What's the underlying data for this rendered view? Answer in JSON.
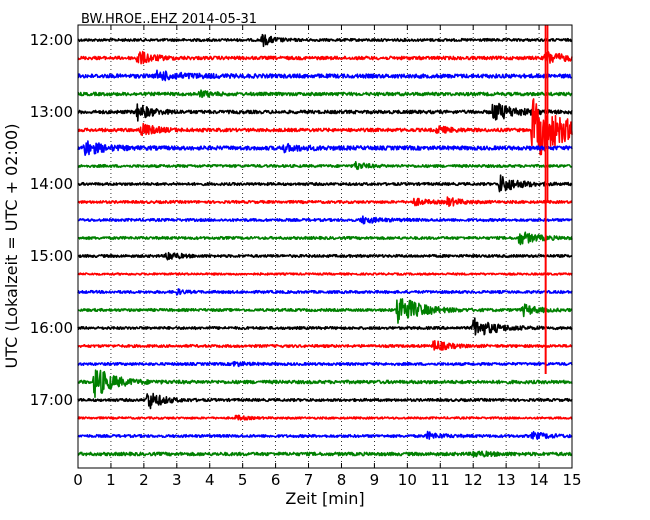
{
  "chart_data": {
    "type": "line",
    "title": "BW.HROE..EHZ 2014-05-31",
    "xlabel": "Zeit  [min]",
    "ylabel": "UTC (Lokalzeit = UTC + 02:00)",
    "xlim": [
      0,
      15
    ],
    "x_ticks": [
      0,
      1,
      2,
      3,
      4,
      5,
      6,
      7,
      8,
      9,
      10,
      11,
      12,
      13,
      14,
      15
    ],
    "grid": "vertical dotted at each minute",
    "y_ticks": [
      "12:00",
      "13:00",
      "14:00",
      "15:00",
      "16:00",
      "17:00"
    ],
    "trace_interval_minutes": 15,
    "trace_colors": [
      "#000000",
      "#ff0000",
      "#0000ff",
      "#008000"
    ],
    "traces": [
      {
        "start": "12:00",
        "color": "#000000",
        "noise": 0.08,
        "events": [
          {
            "t": 5.6,
            "amp": 0.35,
            "dur": 0.3
          }
        ]
      },
      {
        "start": "12:15",
        "color": "#ff0000",
        "noise": 0.1,
        "events": [
          {
            "t": 1.8,
            "amp": 0.45,
            "dur": 0.4
          },
          {
            "t": 14.2,
            "amp": 0.4,
            "dur": 0.5
          }
        ]
      },
      {
        "start": "12:30",
        "color": "#0000ff",
        "noise": 0.12,
        "events": [
          {
            "t": 2.4,
            "amp": 0.25,
            "dur": 0.8
          }
        ]
      },
      {
        "start": "12:45",
        "color": "#008000",
        "noise": 0.1,
        "events": [
          {
            "t": 3.7,
            "amp": 0.2,
            "dur": 0.3
          }
        ]
      },
      {
        "start": "13:00",
        "color": "#000000",
        "noise": 0.1,
        "events": [
          {
            "t": 1.8,
            "amp": 0.5,
            "dur": 0.4
          },
          {
            "t": 12.6,
            "amp": 0.6,
            "dur": 0.6
          }
        ]
      },
      {
        "start": "13:15",
        "color": "#ff0000",
        "noise": 0.1,
        "events": [
          {
            "t": 1.9,
            "amp": 0.4,
            "dur": 0.4
          },
          {
            "t": 10.9,
            "amp": 0.2,
            "dur": 0.4
          },
          {
            "t": 13.8,
            "amp": 1.9,
            "dur": 0.9
          }
        ]
      },
      {
        "start": "13:30",
        "color": "#0000ff",
        "noise": 0.12,
        "events": [
          {
            "t": 0.2,
            "amp": 0.45,
            "dur": 0.5
          },
          {
            "t": 6.2,
            "amp": 0.2,
            "dur": 0.6
          }
        ]
      },
      {
        "start": "13:45",
        "color": "#008000",
        "noise": 0.08,
        "events": [
          {
            "t": 8.4,
            "amp": 0.25,
            "dur": 0.3
          }
        ]
      },
      {
        "start": "14:00",
        "color": "#000000",
        "noise": 0.08,
        "events": [
          {
            "t": 12.8,
            "amp": 0.55,
            "dur": 0.5
          }
        ]
      },
      {
        "start": "14:15",
        "color": "#ff0000",
        "noise": 0.08,
        "events": [
          {
            "t": 10.2,
            "amp": 0.2,
            "dur": 0.4
          },
          {
            "t": 11.2,
            "amp": 0.25,
            "dur": 0.4
          }
        ]
      },
      {
        "start": "14:30",
        "color": "#0000ff",
        "noise": 0.08,
        "events": [
          {
            "t": 8.6,
            "amp": 0.2,
            "dur": 0.5
          }
        ]
      },
      {
        "start": "14:45",
        "color": "#008000",
        "noise": 0.08,
        "events": [
          {
            "t": 13.4,
            "amp": 0.4,
            "dur": 0.5
          }
        ]
      },
      {
        "start": "15:00",
        "color": "#000000",
        "noise": 0.08,
        "events": [
          {
            "t": 2.7,
            "amp": 0.3,
            "dur": 0.3
          }
        ]
      },
      {
        "start": "15:15",
        "color": "#ff0000",
        "noise": 0.06,
        "events": []
      },
      {
        "start": "15:30",
        "color": "#0000ff",
        "noise": 0.08,
        "events": [
          {
            "t": 3.0,
            "amp": 0.15,
            "dur": 0.2
          }
        ]
      },
      {
        "start": "15:45",
        "color": "#008000",
        "noise": 0.08,
        "events": [
          {
            "t": 9.7,
            "amp": 1.0,
            "dur": 0.6
          },
          {
            "t": 13.5,
            "amp": 0.35,
            "dur": 0.4
          }
        ]
      },
      {
        "start": "16:00",
        "color": "#000000",
        "noise": 0.08,
        "events": [
          {
            "t": 12.0,
            "amp": 0.6,
            "dur": 0.6
          }
        ]
      },
      {
        "start": "16:15",
        "color": "#ff0000",
        "noise": 0.08,
        "events": [
          {
            "t": 10.8,
            "amp": 0.35,
            "dur": 0.4
          }
        ]
      },
      {
        "start": "16:30",
        "color": "#0000ff",
        "noise": 0.08,
        "events": [
          {
            "t": 4.7,
            "amp": 0.15,
            "dur": 0.3
          }
        ]
      },
      {
        "start": "16:45",
        "color": "#008000",
        "noise": 0.1,
        "events": [
          {
            "t": 0.5,
            "amp": 1.0,
            "dur": 0.5
          }
        ]
      },
      {
        "start": "17:00",
        "color": "#000000",
        "noise": 0.08,
        "events": [
          {
            "t": 2.1,
            "amp": 0.6,
            "dur": 0.4
          }
        ]
      },
      {
        "start": "17:15",
        "color": "#ff0000",
        "noise": 0.06,
        "events": [
          {
            "t": 4.8,
            "amp": 0.15,
            "dur": 0.3
          }
        ]
      },
      {
        "start": "17:30",
        "color": "#0000ff",
        "noise": 0.08,
        "events": [
          {
            "t": 10.6,
            "amp": 0.2,
            "dur": 0.4
          },
          {
            "t": 13.8,
            "amp": 0.2,
            "dur": 0.5
          }
        ]
      },
      {
        "start": "17:45",
        "color": "#008000",
        "noise": 0.1,
        "events": [
          {
            "t": 12.0,
            "amp": 0.15,
            "dur": 0.5
          }
        ]
      }
    ],
    "spike_line": {
      "color": "#ff0000",
      "x": 14.2,
      "from": "12:00",
      "to": "16:45"
    }
  }
}
